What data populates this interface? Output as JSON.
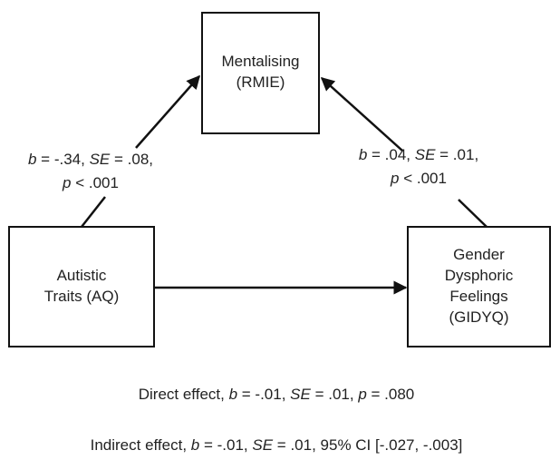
{
  "nodes": [
    {
      "label": [
        "Mentalising",
        "(RMIE)"
      ]
    },
    {
      "label": [
        "Autistic",
        "Traits (AQ)"
      ]
    },
    {
      "label": [
        "Gender",
        "Dysphoric",
        "Feelings",
        "(GIDYQ)"
      ]
    }
  ],
  "edges": [
    {
      "label": [
        [
          {
            "text": "b",
            "italic": true
          },
          {
            "text": " = -.34, "
          },
          {
            "text": "SE",
            "italic": true
          },
          {
            "text": " = .08,"
          }
        ],
        [
          {
            "text": "p",
            "italic": true
          },
          {
            "text": " < .001"
          }
        ]
      ]
    },
    {
      "label": [
        [
          {
            "text": "b",
            "italic": true
          },
          {
            "text": " = .04, "
          },
          {
            "text": "SE",
            "italic": true
          },
          {
            "text": " = .01,"
          }
        ],
        [
          {
            "text": "p",
            "italic": true
          },
          {
            "text": " < .001"
          }
        ]
      ]
    }
  ],
  "footer": [
    [
      {
        "text": "Direct effect, "
      },
      {
        "text": "b",
        "italic": true
      },
      {
        "text": " = -.01, "
      },
      {
        "text": "SE",
        "italic": true
      },
      {
        "text": " = .01, "
      },
      {
        "text": "p",
        "italic": true
      },
      {
        "text": " = .080"
      }
    ],
    [
      {
        "text": "Indirect effect, "
      },
      {
        "text": "b",
        "italic": true
      },
      {
        "text": " = -.01, "
      },
      {
        "text": "SE",
        "italic": true
      },
      {
        "text": " = .01, 95% CI [-.027, -.003]"
      }
    ]
  ]
}
